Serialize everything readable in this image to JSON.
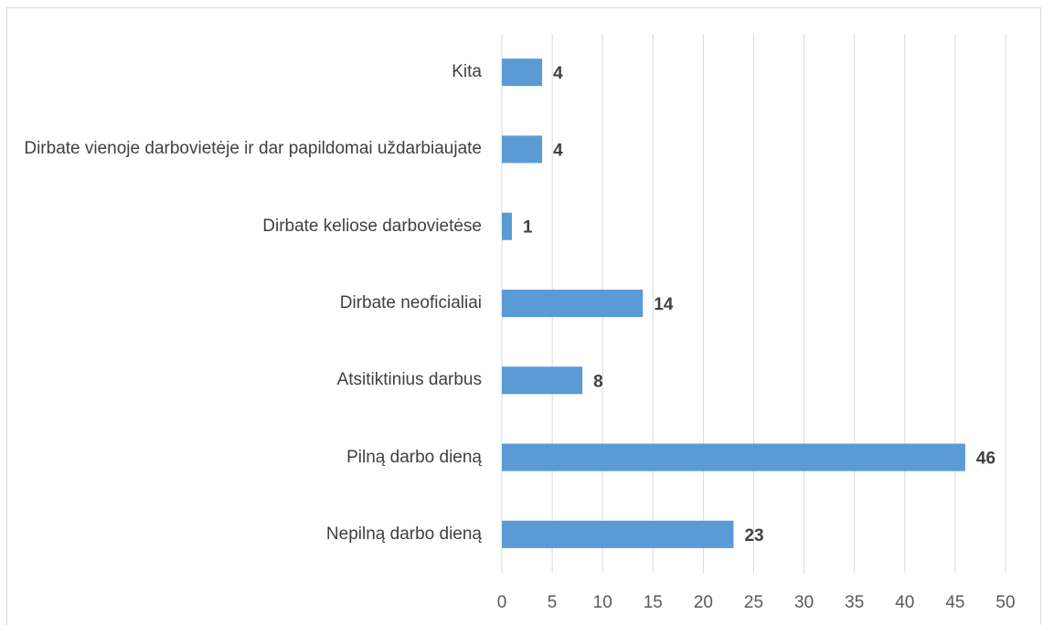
{
  "chart_data": {
    "type": "bar",
    "orientation": "horizontal",
    "categories": [
      "Kita",
      "Dirbate vienoje darbovietėje ir dar papildomai uždarbiaujate",
      "Dirbate keliose darbovietėse",
      "Dirbate neoficialiai",
      "Atsitiktinius darbus",
      "Pilną darbo dieną",
      "Nepilną darbo dieną"
    ],
    "values": [
      4,
      4,
      1,
      14,
      8,
      46,
      23
    ],
    "color": "#5b9bd5",
    "xlim": [
      0,
      50
    ],
    "xticks": [
      0,
      5,
      10,
      15,
      20,
      25,
      30,
      35,
      40,
      45,
      50
    ],
    "grid": true
  }
}
